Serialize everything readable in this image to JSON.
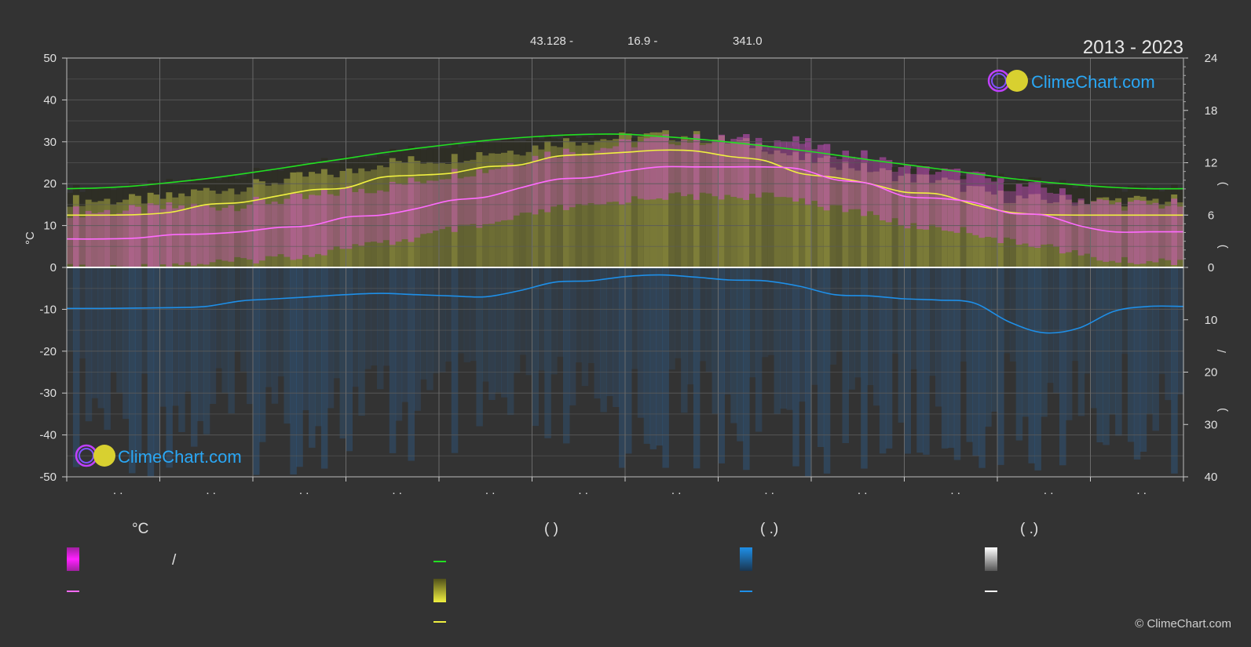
{
  "header": {
    "coords": [
      "43.128 -",
      "16.9 -",
      "341.0"
    ],
    "period": "2013 - 2023"
  },
  "brand": {
    "name": "ClimeChart.com",
    "copyright": "© ClimeChart.com"
  },
  "legend": {
    "temp_header": "°C",
    "sun_header": "(          )",
    "rain_header": "(   .)",
    "snow_header": "(   .)",
    "slash": "/"
  },
  "colors": {
    "background": "#333333",
    "grid": "#5a5a5a",
    "daylight": "#22e022",
    "sunshine_line": "#f0f040",
    "temp_mean": "#ff6bff",
    "rain_line": "#1e8fe8",
    "rain_bar": "#2c6aa8",
    "snow_line": "#ffffff"
  },
  "chart_data": {
    "type": "area",
    "period": "2013 - 2023",
    "x_tick_labels": [
      ". .",
      ". .",
      ". .",
      ". .",
      ". .",
      ". .",
      ". .",
      ". .",
      ". .",
      ". .",
      ". .",
      ". ."
    ],
    "ylabel_left": "°C",
    "ylim_left": [
      -50,
      50
    ],
    "yticks_left": [
      50,
      40,
      30,
      20,
      10,
      0,
      -10,
      -20,
      -30,
      -40,
      -50
    ],
    "ylim_right_top": [
      0,
      24
    ],
    "yticks_right_top": [
      24,
      18,
      12,
      6,
      0
    ],
    "ylim_right_bottom": [
      0,
      40
    ],
    "yticks_right_bottom": [
      10,
      20,
      30,
      40
    ],
    "right_label_fragments": [
      ")",
      ")",
      "/",
      ")"
    ],
    "grid": true,
    "series": [
      {
        "key": "daylight",
        "values": [
          18.8,
          19.0,
          19.5,
          20.3,
          21.2,
          22.3,
          23.5,
          24.8,
          26.0,
          27.3,
          28.4,
          29.4,
          30.3,
          31.0,
          31.5,
          31.8,
          31.8,
          31.3,
          30.7,
          29.9,
          29.0,
          28.0,
          26.9,
          25.7,
          24.6,
          23.5,
          22.4,
          21.3,
          20.4,
          19.7,
          19.1,
          18.8,
          18.8
        ]
      },
      {
        "key": "sunshine",
        "values": [
          12.5,
          12.5,
          12.6,
          13.2,
          15.0,
          15.5,
          17.0,
          18.5,
          19.0,
          21.5,
          22.0,
          22.5,
          24.0,
          24.5,
          26.5,
          27.0,
          27.5,
          28.0,
          27.8,
          26.5,
          25.5,
          22.5,
          21.5,
          20.0,
          18.0,
          17.5,
          15.0,
          13.2,
          12.6,
          12.5,
          12.5,
          12.5,
          12.5
        ]
      },
      {
        "key": "temp_mean",
        "values": [
          6.8,
          6.8,
          7.0,
          7.8,
          8.0,
          8.5,
          9.5,
          10.0,
          12.0,
          12.5,
          14.0,
          16.0,
          16.8,
          19.0,
          21.0,
          21.5,
          23.0,
          24.0,
          24.0,
          24.0,
          24.0,
          23.5,
          21.0,
          20.0,
          17.0,
          16.5,
          15.5,
          13.0,
          12.5,
          10.0,
          8.5,
          8.5,
          8.5
        ]
      },
      {
        "key": "rain",
        "values": [
          -9.8,
          -9.8,
          -9.7,
          -9.6,
          -9.3,
          -8.0,
          -7.5,
          -7.0,
          -6.5,
          -6.2,
          -6.5,
          -6.8,
          -7.0,
          -5.5,
          -3.5,
          -3.2,
          -2.2,
          -1.8,
          -2.3,
          -3.0,
          -3.2,
          -4.5,
          -6.5,
          -6.8,
          -7.5,
          -7.8,
          -8.5,
          -13.0,
          -15.6,
          -14.5,
          -10.5,
          -9.3,
          -9.3
        ]
      }
    ]
  }
}
